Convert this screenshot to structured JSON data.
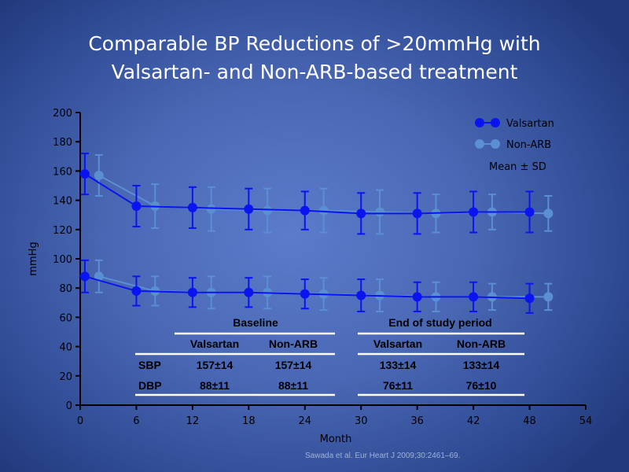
{
  "title": [
    "Comparable BP Reductions of >20mmHg with",
    "Valsartan- and Non-ARB-based treatment"
  ],
  "citation": "Sawada et al. Eur Heart J 2009;30:2461–69.",
  "colors": {
    "valsartan": "#0a14f0",
    "non_arb": "#5a8fd2"
  },
  "chart_data": {
    "type": "line",
    "xlabel": "Month",
    "ylabel": "mmHg",
    "xlim": [
      0,
      54
    ],
    "ylim": [
      0,
      200
    ],
    "xticks": [
      0,
      6,
      12,
      18,
      24,
      30,
      36,
      42,
      48,
      54
    ],
    "yticks": [
      0,
      20,
      40,
      60,
      80,
      100,
      120,
      140,
      160,
      180,
      200
    ],
    "legend": {
      "placement": "top-right",
      "entries": [
        "Valsartan",
        "Non-ARB"
      ],
      "note": "Mean ± SD"
    },
    "series": [
      {
        "name": "Valsartan",
        "measure": "SBP",
        "x": [
          0.5,
          6,
          12,
          18,
          24,
          30,
          36,
          42,
          48
        ],
        "y": [
          158,
          136,
          135,
          134,
          133,
          131,
          131,
          132,
          132
        ],
        "sd": [
          14,
          14,
          14,
          14,
          13,
          14,
          14,
          14,
          14
        ]
      },
      {
        "name": "Non-ARB",
        "measure": "SBP",
        "x": [
          2,
          8,
          14,
          20,
          26,
          32,
          38,
          44,
          50
        ],
        "y": [
          157,
          136,
          134,
          133,
          133,
          132,
          131,
          132,
          131
        ],
        "sd": [
          14,
          15,
          15,
          15,
          15,
          15,
          13,
          12,
          12
        ]
      },
      {
        "name": "Valsartan",
        "measure": "DBP",
        "x": [
          0.5,
          6,
          12,
          18,
          24,
          30,
          36,
          42,
          48
        ],
        "y": [
          88,
          78,
          77,
          77,
          76,
          75,
          74,
          74,
          73
        ],
        "sd": [
          11,
          10,
          10,
          10,
          10,
          11,
          10,
          10,
          10
        ]
      },
      {
        "name": "Non-ARB",
        "measure": "DBP",
        "x": [
          2,
          8,
          14,
          20,
          26,
          32,
          38,
          44,
          50
        ],
        "y": [
          88,
          78,
          77,
          77,
          76,
          75,
          74,
          74,
          74
        ],
        "sd": [
          11,
          10,
          11,
          11,
          11,
          11,
          10,
          9,
          9
        ]
      }
    ],
    "table": {
      "groups": [
        "Baseline",
        "End of study period"
      ],
      "columns": [
        "Valsartan",
        "Non-ARB",
        "Valsartan",
        "Non-ARB"
      ],
      "rows": [
        {
          "label": "SBP",
          "values": [
            "157±14",
            "157±14",
            "133±14",
            "133±14"
          ]
        },
        {
          "label": "DBP",
          "values": [
            "88±11",
            "88±11",
            "76±11",
            "76±10"
          ]
        }
      ]
    }
  }
}
